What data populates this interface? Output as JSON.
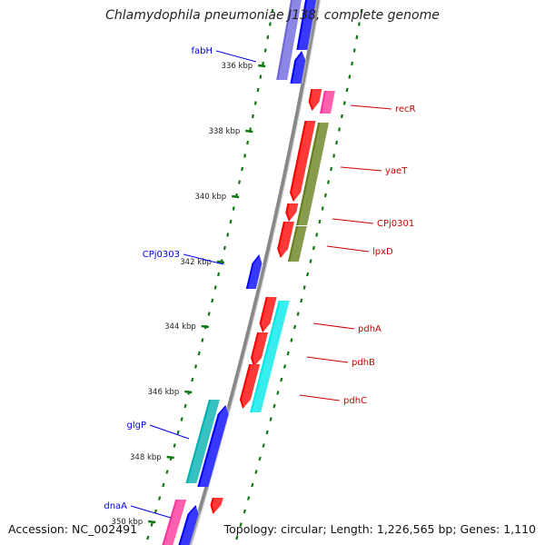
{
  "title": "Chlamydophila pneumoniae J138, complete genome",
  "footer": {
    "accession": "Accession: NC_002491",
    "summary": "Topology: circular; Length: 1,226,565 bp; Genes: 1,110"
  },
  "ticks": [
    {
      "label": "336 kbp",
      "kbp": 336
    },
    {
      "label": "338 kbp",
      "kbp": 338
    },
    {
      "label": "340 kbp",
      "kbp": 340
    },
    {
      "label": "342 kbp",
      "kbp": 342
    },
    {
      "label": "344 kbp",
      "kbp": 344
    },
    {
      "label": "346 kbp",
      "kbp": 346
    },
    {
      "label": "348 kbp",
      "kbp": 348
    },
    {
      "label": "350 kbp",
      "kbp": 350
    }
  ],
  "genes": [
    {
      "label": "fabH",
      "strand": "reverse",
      "color": "#0000ee"
    },
    {
      "label": "recR",
      "strand": "forward",
      "color": "#cc0000"
    },
    {
      "label": "yaeT",
      "strand": "forward",
      "color": "#cc0000"
    },
    {
      "label": "CPj0301",
      "strand": "forward",
      "color": "#cc0000"
    },
    {
      "label": "lpxD",
      "strand": "forward",
      "color": "#cc0000"
    },
    {
      "label": "CPj0303",
      "strand": "reverse",
      "color": "#0000ee"
    },
    {
      "label": "pdhA",
      "strand": "forward",
      "color": "#cc0000"
    },
    {
      "label": "pdhB",
      "strand": "forward",
      "color": "#cc0000"
    },
    {
      "label": "pdhC",
      "strand": "forward",
      "color": "#cc0000"
    },
    {
      "label": "glgP",
      "strand": "reverse",
      "color": "#0000ee"
    },
    {
      "label": "dnaA",
      "strand": "reverse",
      "color": "#0000ee"
    }
  ],
  "colors": {
    "forward_cds": "#ff0000",
    "reverse_cds": "#0000ff",
    "backbone": "#888888",
    "gc_dots": "#117711",
    "cog_magenta": "#ff3399",
    "cog_olive": "#667f1c",
    "cog_cyan": "#00e8e8",
    "cog_teal": "#00b0b0",
    "cog_lavender": "#6c66dd"
  }
}
